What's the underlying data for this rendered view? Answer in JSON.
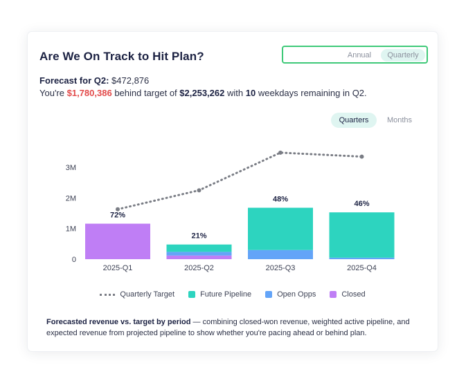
{
  "title": "Are We On Track to Hit Plan?",
  "period_toggle": {
    "options": [
      "Annual",
      "Quarterly"
    ],
    "selected": "Quarterly"
  },
  "forecast": {
    "label": "Forecast for Q2:",
    "value": "$472,876",
    "prefix": "You're",
    "behind_amount": "$1,780,386",
    "middle": "behind target of",
    "target": "$2,253,262",
    "with": "with",
    "weekdays": "10",
    "suffix": "weekdays remaining in Q2."
  },
  "granularity_toggle": {
    "options": [
      "Quarters",
      "Months"
    ],
    "selected": "Quarters"
  },
  "colors": {
    "closed": "#bf7ef5",
    "open_opps": "#63a4f8",
    "future_pipeline": "#2dd4bf",
    "target_line": "#7a7d85",
    "behind": "#e24a4a",
    "toggle_border": "#3ec978"
  },
  "chart_data": {
    "type": "bar",
    "stacked": true,
    "categories": [
      "2025-Q1",
      "2025-Q2",
      "2025-Q3",
      "2025-Q4"
    ],
    "series": [
      {
        "name": "Closed",
        "values": [
          1.16,
          0.12,
          0.0,
          0.0
        ]
      },
      {
        "name": "Open Opps",
        "values": [
          0.0,
          0.12,
          0.3,
          0.05
        ]
      },
      {
        "name": "Future Pipeline",
        "values": [
          0.0,
          0.24,
          1.38,
          1.48
        ]
      }
    ],
    "line_series": {
      "name": "Quarterly Target",
      "values": [
        1.63,
        2.25,
        3.48,
        3.35
      ]
    },
    "percent_labels": [
      "72%",
      "21%",
      "48%",
      "46%"
    ],
    "yticks": [
      "0",
      "1M",
      "2M",
      "3M"
    ],
    "ylim": [
      0,
      3.6
    ],
    "legend": [
      "Quarterly Target",
      "Future Pipeline",
      "Open Opps",
      "Closed"
    ],
    "legend_position": "bottom"
  },
  "description": {
    "bold": "Forecasted revenue vs. target by period",
    "text": " — combining closed-won revenue, weighted active pipeline, and expected revenue from projected pipeline to show whether you're pacing ahead or behind plan."
  }
}
